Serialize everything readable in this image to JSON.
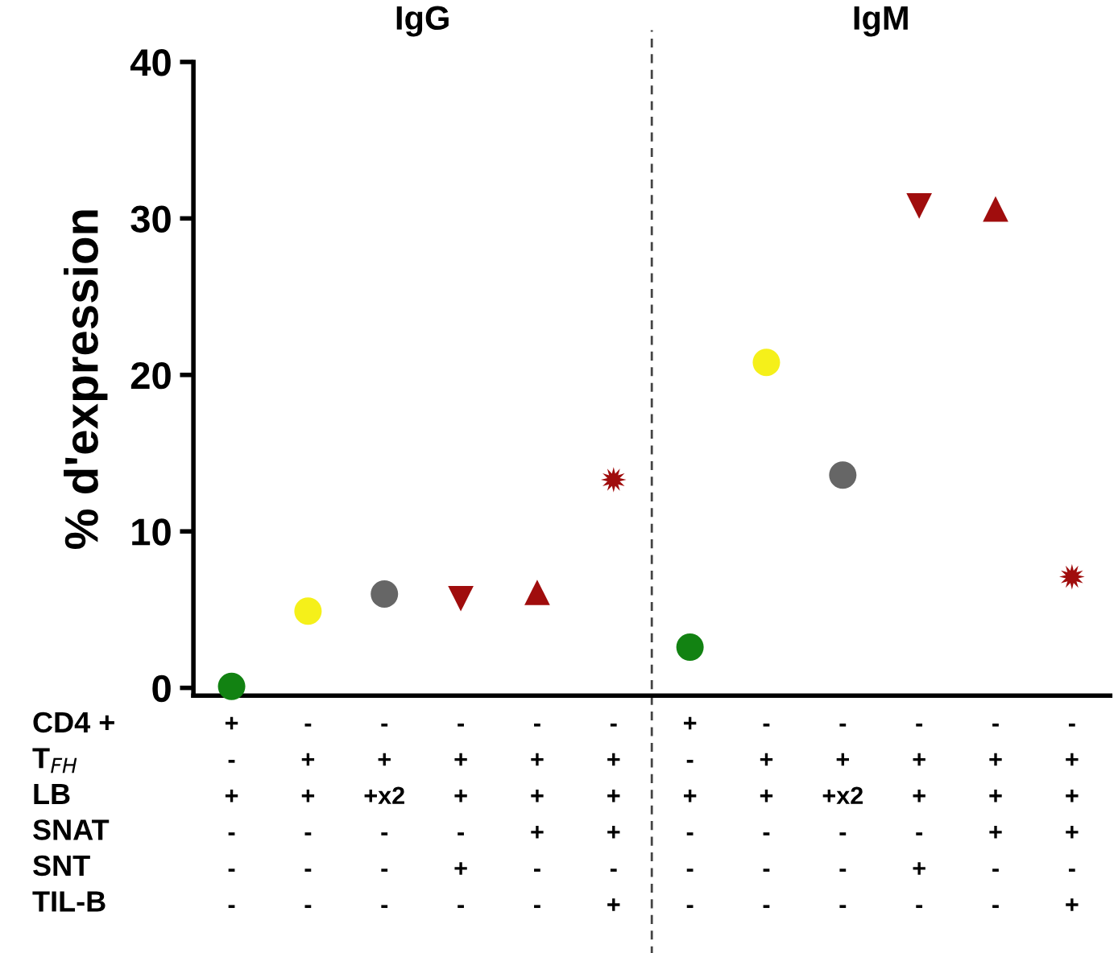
{
  "chart_data": {
    "type": "scatter",
    "ylabel": "% d'expression",
    "categories": [
      "+\n-\n+\n-\n-\n-",
      "-\n+\n+\n-\n-\n-",
      "-\n+\n+x2\n-\n-\n-",
      "-\n+\n+\n-\n+\n-",
      "-\n+\n+\n+\n-\n-",
      "-\n+\n+\n+\n-\n+",
      "+\n-\n+\n-\n-\n-",
      "-\n+\n+\n-\n-\n-",
      "-\n+\n+x2\n-\n-\n-",
      "-\n+\n+\n-\n+\n-",
      "-\n+\n+\n+\n-\n-",
      "-\n+\n+\n+\n-\n+"
    ],
    "series": [
      {
        "marker": "circle",
        "values": [
          0.1,
          4.9,
          6.0,
          null,
          null,
          null,
          2.6,
          20.8,
          13.6,
          null,
          null,
          null
        ],
        "colors": [
          "#128212",
          "#f5f01a",
          "#666666",
          null,
          null,
          null,
          "#128212",
          "#f5f01a",
          "#666666",
          null,
          null,
          null
        ]
      },
      {
        "marker": "triangle_down",
        "color": "#a00d0d",
        "values": [
          null,
          null,
          null,
          5.7,
          null,
          null,
          null,
          null,
          null,
          30.8,
          null,
          null
        ]
      },
      {
        "marker": "triangle",
        "color": "#a00d0d",
        "values": [
          null,
          null,
          null,
          null,
          6.1,
          null,
          null,
          null,
          null,
          null,
          30.6,
          null
        ]
      },
      {
        "marker": "star",
        "color": "#a00d0d",
        "values": [
          null,
          null,
          null,
          null,
          null,
          13.3,
          null,
          null,
          null,
          null,
          null,
          7.1
        ]
      }
    ],
    "ylim": [
      -0.5,
      40
    ],
    "yticks": [
      0,
      10,
      20,
      30,
      40
    ],
    "annotations": [
      "IgG",
      "IgM",
      "CD4 +",
      "T$_{FH}$",
      "LB",
      "SNAT",
      "SNT",
      "TIL-B"
    ],
    "grid": false,
    "legend": false
  }
}
